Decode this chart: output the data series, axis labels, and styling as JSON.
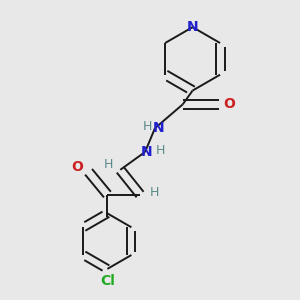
{
  "bg_color": "#e8e8e8",
  "bond_color": "#1a1a1a",
  "N_color": "#2020cc",
  "O_color": "#cc2020",
  "Cl_color": "#22aa22",
  "H_color": "#5a8a8a",
  "line_width": 1.4,
  "figsize": [
    3.0,
    3.0
  ],
  "dpi": 100,
  "xlim": [
    0,
    300
  ],
  "ylim": [
    0,
    300
  ]
}
